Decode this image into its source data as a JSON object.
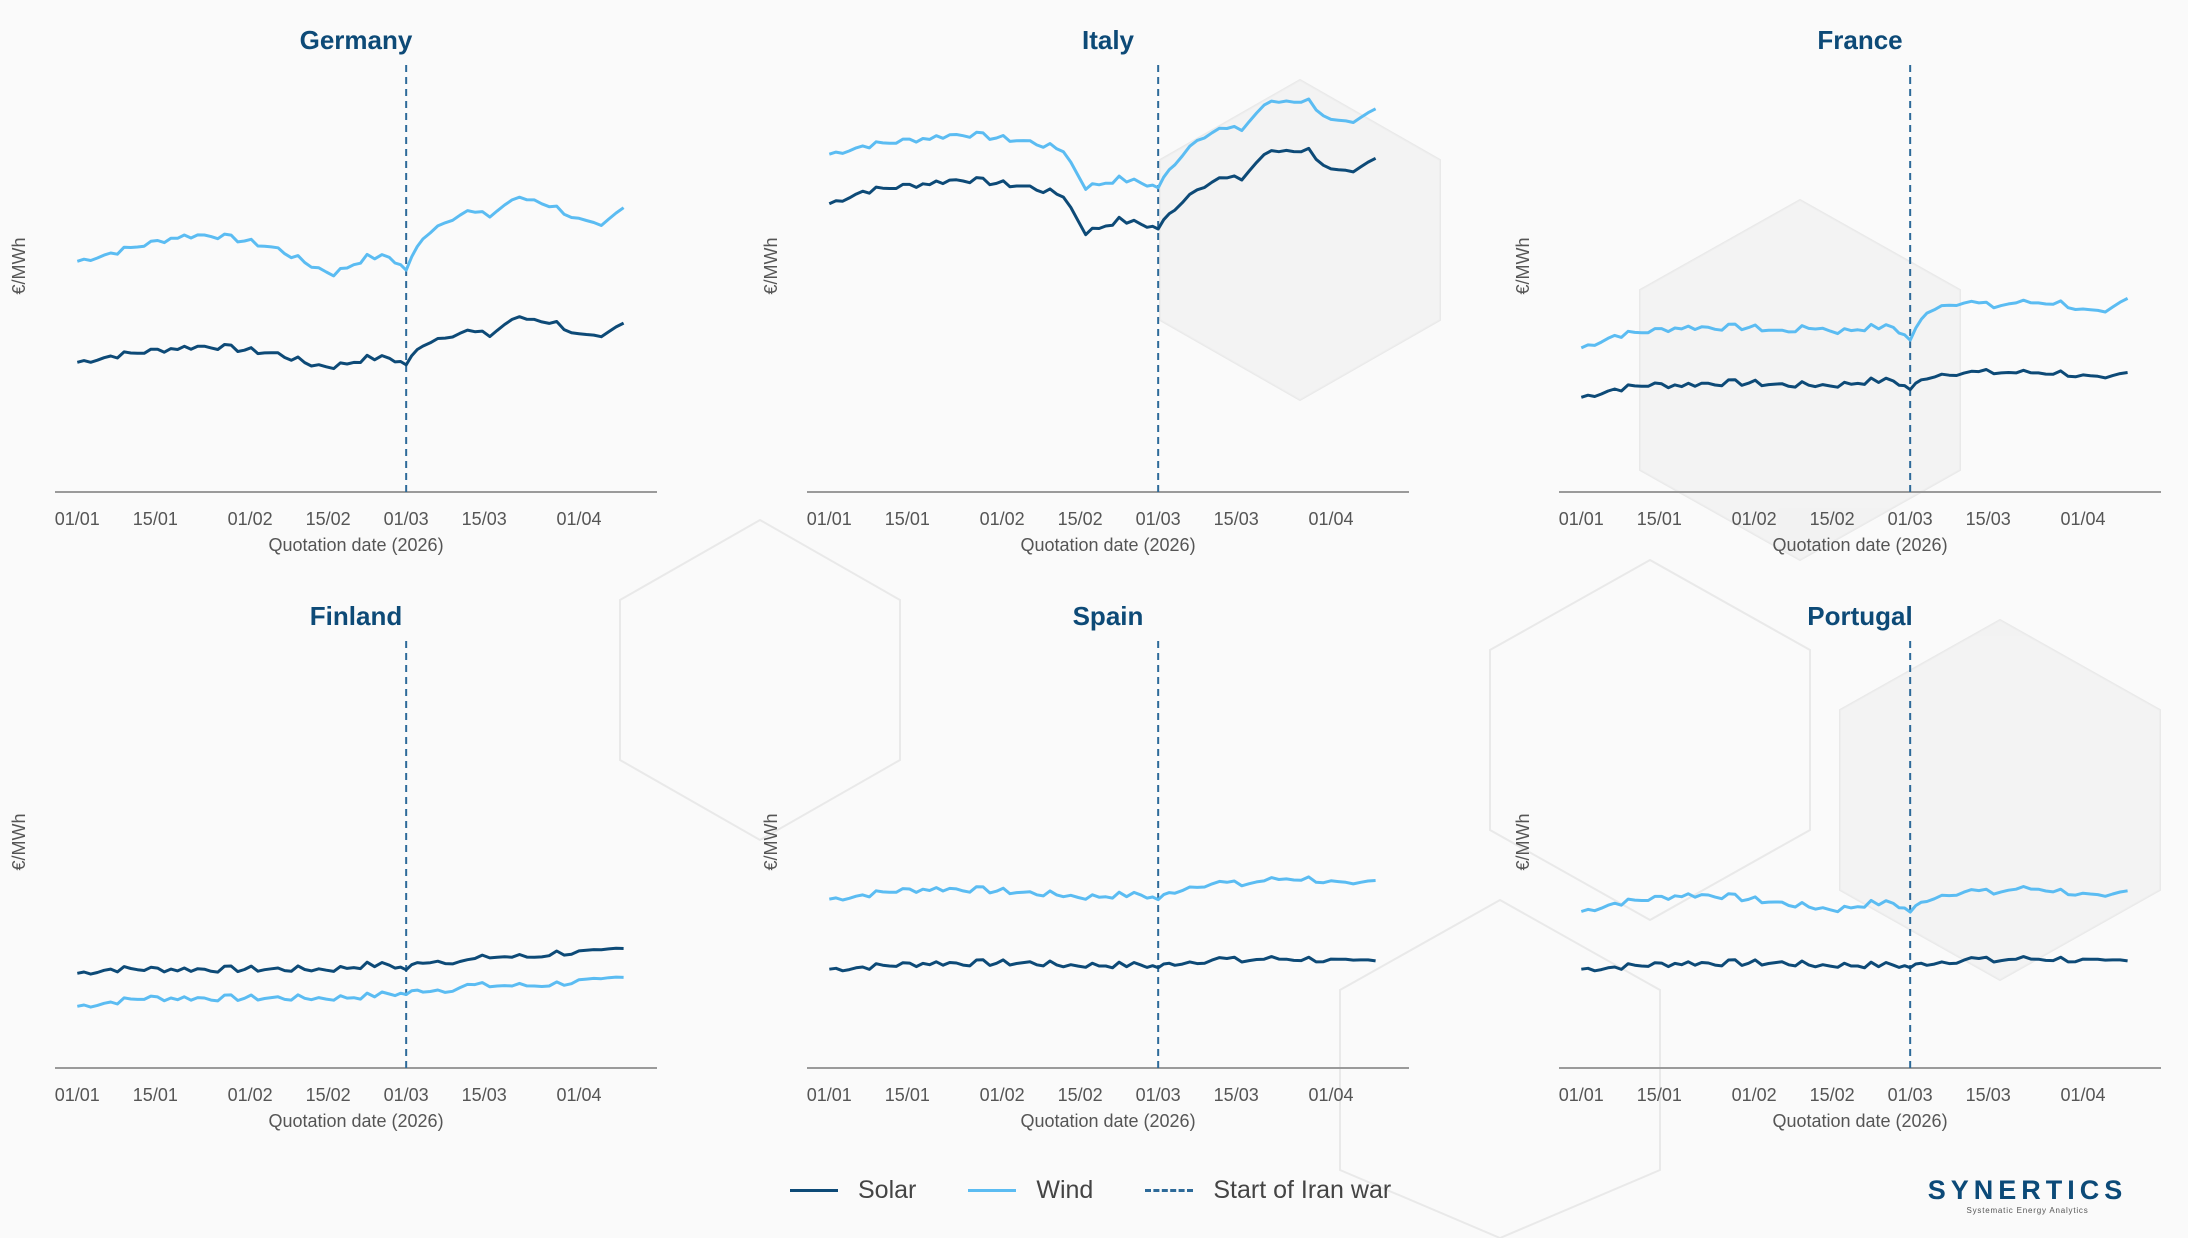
{
  "colors": {
    "solar": "#0d4a77",
    "wind": "#5bbcf2",
    "vline": "#2d6a99",
    "title": "#0d4a77",
    "axis": "#9a9a9a",
    "tick_text": "#555555"
  },
  "common": {
    "xlabel": "Quotation date (2026)",
    "ylabel": "€/MWh",
    "x_ticks": [
      "01/01",
      "15/01",
      "01/02",
      "15/02",
      "01/03",
      "15/03",
      "01/04"
    ],
    "x_tick_days": [
      0,
      14,
      31,
      45,
      59,
      73,
      90
    ],
    "x_range": [
      -4,
      104
    ],
    "event_day": 59
  },
  "legend": {
    "solar": "Solar",
    "wind": "Wind",
    "event": "Start of Iran war"
  },
  "logo": {
    "name": "SYNERTICS",
    "tagline": "Systematic Energy Analytics"
  },
  "chart_data": [
    {
      "type": "line",
      "title": "Germany",
      "xlabel": "Quotation date (2026)",
      "ylabel": "€/MWh",
      "ylim": [
        0,
        100
      ],
      "series": [
        {
          "name": "Solar",
          "points": [
            [
              0,
              31.5
            ],
            [
              6,
              33
            ],
            [
              12,
              34
            ],
            [
              18,
              35
            ],
            [
              24,
              35.5
            ],
            [
              30,
              34.5
            ],
            [
              36,
              33.5
            ],
            [
              42,
              31
            ],
            [
              46,
              30.5
            ],
            [
              52,
              32.5
            ],
            [
              56,
              32.5
            ],
            [
              59,
              31
            ],
            [
              62,
              36
            ],
            [
              66,
              38
            ],
            [
              70,
              39
            ],
            [
              74,
              38
            ],
            [
              78,
              42
            ],
            [
              82,
              42
            ],
            [
              86,
              41
            ],
            [
              90,
              38
            ],
            [
              94,
              37
            ],
            [
              98,
              41
            ]
          ]
        },
        {
          "name": "Wind",
          "points": [
            [
              0,
              56
            ],
            [
              6,
              58
            ],
            [
              12,
              60
            ],
            [
              18,
              62
            ],
            [
              24,
              62.5
            ],
            [
              30,
              61
            ],
            [
              36,
              59
            ],
            [
              42,
              55
            ],
            [
              46,
              53
            ],
            [
              52,
              57
            ],
            [
              56,
              57
            ],
            [
              59,
              54
            ],
            [
              62,
              62
            ],
            [
              66,
              66
            ],
            [
              70,
              68
            ],
            [
              74,
              67
            ],
            [
              78,
              71
            ],
            [
              82,
              71
            ],
            [
              86,
              69
            ],
            [
              90,
              66
            ],
            [
              94,
              64
            ],
            [
              98,
              69
            ]
          ]
        }
      ]
    },
    {
      "type": "line",
      "title": "Italy",
      "xlabel": "Quotation date (2026)",
      "ylabel": "€/MWh",
      "ylim": [
        0,
        100
      ],
      "series": [
        {
          "name": "Solar",
          "points": [
            [
              0,
              70
            ],
            [
              6,
              73
            ],
            [
              12,
              74
            ],
            [
              18,
              75
            ],
            [
              24,
              76
            ],
            [
              30,
              75
            ],
            [
              36,
              74
            ],
            [
              42,
              72
            ],
            [
              46,
              63
            ],
            [
              52,
              66
            ],
            [
              56,
              65
            ],
            [
              59,
              64
            ],
            [
              62,
              69
            ],
            [
              66,
              74
            ],
            [
              70,
              76
            ],
            [
              74,
              76
            ],
            [
              78,
              82
            ],
            [
              82,
              83
            ],
            [
              86,
              83
            ],
            [
              90,
              78
            ],
            [
              94,
              77
            ],
            [
              98,
              81
            ]
          ]
        },
        {
          "name": "Wind",
          "points": [
            [
              0,
              82
            ],
            [
              6,
              84
            ],
            [
              12,
              85
            ],
            [
              18,
              86
            ],
            [
              24,
              87
            ],
            [
              30,
              86
            ],
            [
              36,
              85
            ],
            [
              42,
              83
            ],
            [
              46,
              74
            ],
            [
              52,
              76
            ],
            [
              56,
              75
            ],
            [
              59,
              74
            ],
            [
              62,
              80
            ],
            [
              66,
              86
            ],
            [
              70,
              88
            ],
            [
              74,
              88
            ],
            [
              78,
              94
            ],
            [
              82,
              95
            ],
            [
              86,
              95
            ],
            [
              90,
              90
            ],
            [
              94,
              89
            ],
            [
              98,
              93
            ]
          ]
        }
      ]
    },
    {
      "type": "line",
      "title": "France",
      "xlabel": "Quotation date (2026)",
      "ylabel": "€/MWh",
      "ylim": [
        0,
        100
      ],
      "series": [
        {
          "name": "Solar",
          "points": [
            [
              0,
              23
            ],
            [
              6,
              25
            ],
            [
              12,
              26
            ],
            [
              18,
              26
            ],
            [
              24,
              26.5
            ],
            [
              30,
              26.5
            ],
            [
              36,
              26
            ],
            [
              42,
              26
            ],
            [
              46,
              26
            ],
            [
              52,
              27
            ],
            [
              56,
              27
            ],
            [
              59,
              25
            ],
            [
              62,
              28
            ],
            [
              66,
              29
            ],
            [
              70,
              29
            ],
            [
              74,
              29
            ],
            [
              78,
              29
            ],
            [
              82,
              29
            ],
            [
              86,
              29
            ],
            [
              90,
              28
            ],
            [
              94,
              27
            ],
            [
              98,
              29
            ]
          ]
        },
        {
          "name": "Wind",
          "points": [
            [
              0,
              35
            ],
            [
              6,
              38
            ],
            [
              12,
              39
            ],
            [
              18,
              40
            ],
            [
              24,
              40
            ],
            [
              30,
              40
            ],
            [
              36,
              39
            ],
            [
              42,
              40
            ],
            [
              46,
              39
            ],
            [
              52,
              40
            ],
            [
              56,
              40
            ],
            [
              59,
              37
            ],
            [
              62,
              44
            ],
            [
              66,
              46
            ],
            [
              70,
              46
            ],
            [
              74,
              45
            ],
            [
              78,
              46
            ],
            [
              82,
              46
            ],
            [
              86,
              46
            ],
            [
              90,
              44
            ],
            [
              94,
              43
            ],
            [
              98,
              47
            ]
          ]
        }
      ]
    },
    {
      "type": "line",
      "title": "Finland",
      "xlabel": "Quotation date (2026)",
      "ylabel": "€/MWh",
      "ylim": [
        0,
        100
      ],
      "series": [
        {
          "name": "Solar",
          "points": [
            [
              0,
              23
            ],
            [
              6,
              24
            ],
            [
              12,
              24
            ],
            [
              18,
              24
            ],
            [
              24,
              24
            ],
            [
              30,
              24
            ],
            [
              36,
              24
            ],
            [
              42,
              24
            ],
            [
              46,
              24
            ],
            [
              52,
              25
            ],
            [
              56,
              25
            ],
            [
              59,
              24
            ],
            [
              62,
              26
            ],
            [
              66,
              26
            ],
            [
              70,
              26
            ],
            [
              74,
              27
            ],
            [
              78,
              27
            ],
            [
              82,
              27
            ],
            [
              86,
              28
            ],
            [
              90,
              28
            ],
            [
              94,
              28
            ],
            [
              98,
              29
            ]
          ]
        },
        {
          "name": "Wind",
          "points": [
            [
              0,
              15
            ],
            [
              6,
              16
            ],
            [
              12,
              17
            ],
            [
              18,
              17
            ],
            [
              24,
              17
            ],
            [
              30,
              17
            ],
            [
              36,
              17
            ],
            [
              42,
              17
            ],
            [
              46,
              17
            ],
            [
              52,
              17.5
            ],
            [
              56,
              18
            ],
            [
              59,
              18
            ],
            [
              62,
              19
            ],
            [
              66,
              19
            ],
            [
              70,
              20
            ],
            [
              74,
              20
            ],
            [
              78,
              20
            ],
            [
              82,
              20
            ],
            [
              86,
              20.5
            ],
            [
              90,
              21
            ],
            [
              94,
              21
            ],
            [
              98,
              22
            ]
          ]
        }
      ]
    },
    {
      "type": "line",
      "title": "Spain",
      "xlabel": "Quotation date (2026)",
      "ylabel": "€/MWh",
      "ylim": [
        0,
        100
      ],
      "series": [
        {
          "name": "Solar",
          "points": [
            [
              0,
              24
            ],
            [
              6,
              24.5
            ],
            [
              12,
              25
            ],
            [
              18,
              25.5
            ],
            [
              24,
              25.5
            ],
            [
              30,
              25.5
            ],
            [
              36,
              25.5
            ],
            [
              42,
              25
            ],
            [
              46,
              25
            ],
            [
              52,
              25
            ],
            [
              56,
              25
            ],
            [
              59,
              24.5
            ],
            [
              62,
              25.5
            ],
            [
              66,
              26
            ],
            [
              70,
              26.5
            ],
            [
              74,
              26
            ],
            [
              78,
              26.5
            ],
            [
              82,
              26.5
            ],
            [
              86,
              26.5
            ],
            [
              90,
              26
            ],
            [
              94,
              25.5
            ],
            [
              98,
              26
            ]
          ]
        },
        {
          "name": "Wind",
          "points": [
            [
              0,
              41
            ],
            [
              6,
              42
            ],
            [
              12,
              43
            ],
            [
              18,
              43.5
            ],
            [
              24,
              43.5
            ],
            [
              30,
              43
            ],
            [
              36,
              42.5
            ],
            [
              42,
              42
            ],
            [
              46,
              41.5
            ],
            [
              52,
              42
            ],
            [
              56,
              42
            ],
            [
              59,
              41
            ],
            [
              62,
              43
            ],
            [
              66,
              44.5
            ],
            [
              70,
              45
            ],
            [
              74,
              44.5
            ],
            [
              78,
              45.5
            ],
            [
              82,
              46
            ],
            [
              86,
              46
            ],
            [
              90,
              45
            ],
            [
              94,
              44
            ],
            [
              98,
              45.5
            ]
          ]
        }
      ]
    },
    {
      "type": "line",
      "title": "Portugal",
      "xlabel": "Quotation date (2026)",
      "ylabel": "€/MWh",
      "ylim": [
        0,
        100
      ],
      "series": [
        {
          "name": "Solar",
          "points": [
            [
              0,
              24
            ],
            [
              6,
              24.5
            ],
            [
              12,
              25
            ],
            [
              18,
              25.5
            ],
            [
              24,
              25.5
            ],
            [
              30,
              25.5
            ],
            [
              36,
              25.5
            ],
            [
              42,
              25
            ],
            [
              46,
              25
            ],
            [
              52,
              25
            ],
            [
              56,
              25
            ],
            [
              59,
              24.5
            ],
            [
              62,
              25.5
            ],
            [
              66,
              26
            ],
            [
              70,
              26.5
            ],
            [
              74,
              26
            ],
            [
              78,
              26.5
            ],
            [
              82,
              26.5
            ],
            [
              86,
              26.5
            ],
            [
              90,
              26
            ],
            [
              94,
              25.5
            ],
            [
              98,
              26
            ]
          ]
        },
        {
          "name": "Wind",
          "points": [
            [
              0,
              38
            ],
            [
              6,
              40
            ],
            [
              12,
              41
            ],
            [
              18,
              42
            ],
            [
              24,
              42
            ],
            [
              30,
              41
            ],
            [
              36,
              40
            ],
            [
              42,
              39
            ],
            [
              46,
              38.5
            ],
            [
              52,
              40
            ],
            [
              56,
              40
            ],
            [
              59,
              38
            ],
            [
              62,
              41
            ],
            [
              66,
              42.5
            ],
            [
              70,
              43
            ],
            [
              74,
              42.5
            ],
            [
              78,
              43.5
            ],
            [
              82,
              43.5
            ],
            [
              86,
              43
            ],
            [
              90,
              42
            ],
            [
              94,
              41
            ],
            [
              98,
              43
            ]
          ]
        }
      ]
    }
  ]
}
